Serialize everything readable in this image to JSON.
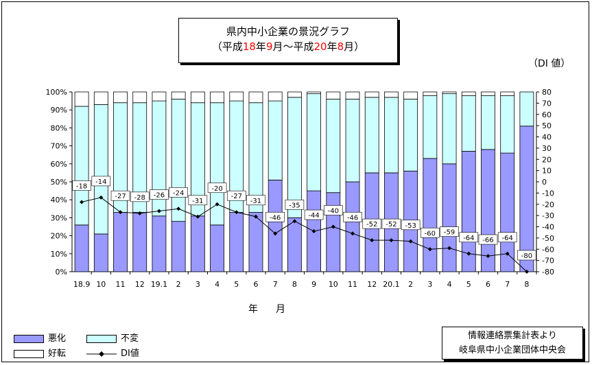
{
  "title": {
    "line1": "県内中小企業の景況グラフ",
    "line2_parts": [
      {
        "t": "（平成",
        "red": false
      },
      {
        "t": "18",
        "red": true
      },
      {
        "t": "年",
        "red": false
      },
      {
        "t": "9",
        "red": true
      },
      {
        "t": "月〜平成",
        "red": false
      },
      {
        "t": "20",
        "red": true
      },
      {
        "t": "年",
        "red": false
      },
      {
        "t": "8",
        "red": true
      },
      {
        "t": "月）",
        "red": false
      }
    ]
  },
  "right_axis_unit": "（DI 値）",
  "xlabel": "年　月",
  "source": {
    "line1": "情報連絡票集計表より",
    "line2": "岐阜県中小企業団体中央会"
  },
  "legend": {
    "bad": "悪化",
    "same": "不変",
    "good": "好転",
    "di": "DI値"
  },
  "colors": {
    "bad": "#9999ff",
    "same": "#ccffff",
    "good": "#ffffff",
    "line": "#000000"
  },
  "chart_data": {
    "type": "bar",
    "stacked": true,
    "categories": [
      "18.9",
      "10",
      "11",
      "12",
      "19.1",
      "2",
      "3",
      "4",
      "5",
      "6",
      "7",
      "8",
      "9",
      "10",
      "11",
      "12",
      "20.1",
      "2",
      "3",
      "4",
      "5",
      "6",
      "7",
      "8"
    ],
    "series": [
      {
        "name": "悪化",
        "values": [
          26,
          21,
          33,
          33,
          31,
          28,
          31,
          26,
          33,
          33,
          51,
          30,
          45,
          44,
          50,
          55,
          55,
          56,
          63,
          60,
          67,
          68,
          66,
          81
        ]
      },
      {
        "name": "不変",
        "values": [
          66,
          72,
          61,
          61,
          64,
          68,
          63,
          68,
          62,
          61,
          44,
          67,
          54,
          52,
          46,
          42,
          42,
          40,
          35,
          39,
          31,
          30,
          32,
          19
        ]
      },
      {
        "name": "好転",
        "values": [
          8,
          7,
          6,
          6,
          5,
          4,
          6,
          6,
          5,
          6,
          5,
          3,
          1,
          4,
          4,
          3,
          3,
          4,
          2,
          1,
          2,
          2,
          2,
          0
        ]
      }
    ],
    "line_series": {
      "name": "DI値",
      "values": [
        -18,
        -14,
        -27,
        -28,
        -26,
        -24,
        -31,
        -20,
        -27,
        -31,
        -46,
        -35,
        -44,
        -40,
        -46,
        -52,
        -52,
        -53,
        -60,
        -59,
        -64,
        -66,
        -64,
        -80
      ]
    },
    "left_axis": {
      "ylim": [
        0,
        100
      ],
      "ticks": [
        "0%",
        "10%",
        "20%",
        "30%",
        "40%",
        "50%",
        "60%",
        "70%",
        "80%",
        "90%",
        "100%"
      ]
    },
    "right_axis": {
      "ylim": [
        -80,
        80
      ],
      "ticks": [
        "-80",
        "-70",
        "-60",
        "-50",
        "-40",
        "-30",
        "-20",
        "-10",
        "0",
        "10",
        "20",
        "30",
        "40",
        "50",
        "60",
        "70",
        "80"
      ]
    },
    "legend_position": "bottom-left"
  }
}
